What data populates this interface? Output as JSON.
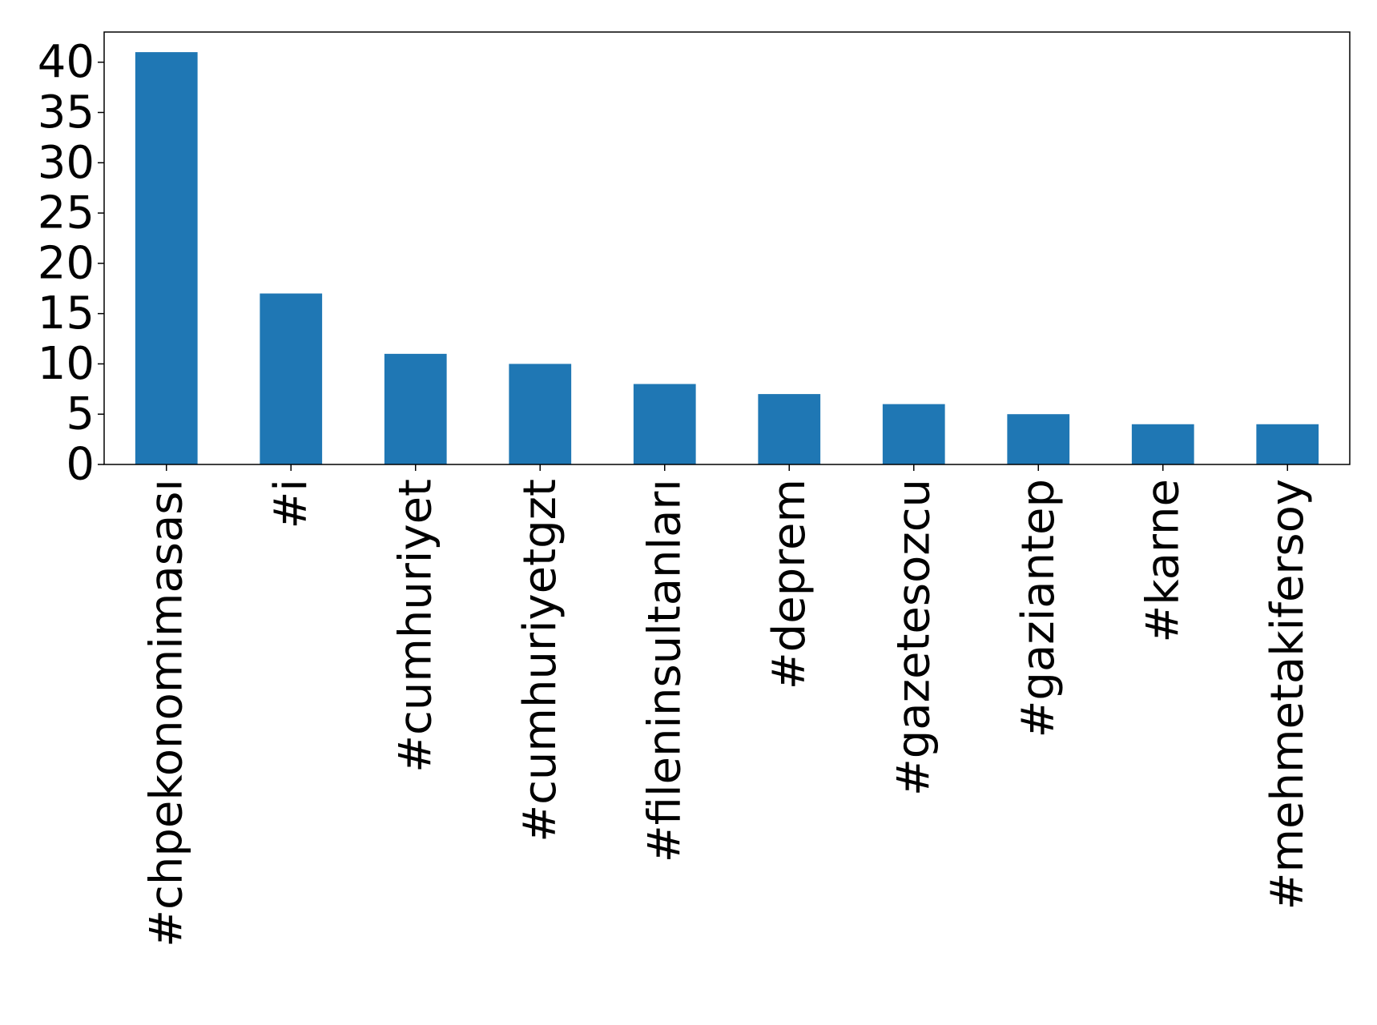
{
  "chart_data": {
    "type": "bar",
    "title": "",
    "xlabel": "",
    "ylabel": "",
    "categories": [
      "#chpekonomimasası",
      "#i",
      "#cumhuriyet",
      "#cumhuriyetgzt",
      "#fileninsultanları",
      "#deprem",
      "#gazetesozcu",
      "#gaziantep",
      "#karne",
      "#mehmetakifersoy"
    ],
    "values": [
      41,
      17,
      11,
      10,
      8,
      7,
      6,
      5,
      4,
      4
    ],
    "ylim": [
      0,
      43
    ],
    "yticks": [
      "0",
      "5",
      "10",
      "15",
      "20",
      "25",
      "30",
      "35",
      "40"
    ],
    "grid": false,
    "legend": "none",
    "bar_color": "#1f77b4"
  }
}
